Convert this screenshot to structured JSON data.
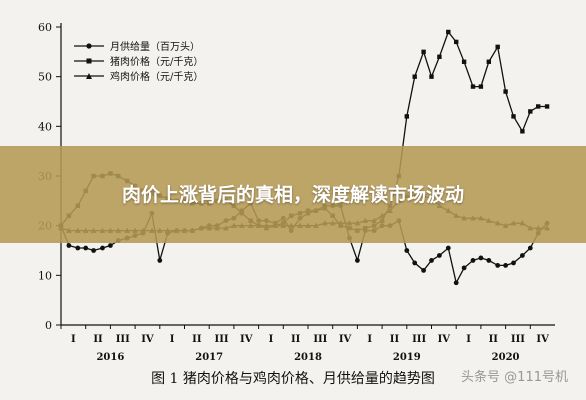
{
  "banner": {
    "title": "肉价上涨背后的真相，深度解读市场波动"
  },
  "figure": {
    "caption": "图 1  猪肉价格与鸡肉价格、月供给量的趋势图",
    "watermark": "头条号 @111号机"
  },
  "chart_data": {
    "type": "line",
    "ylim": [
      0,
      60
    ],
    "yticks": [
      "0",
      "10",
      "20",
      "30",
      "40",
      "50",
      "60"
    ],
    "quarter_labels": [
      "I",
      "II",
      "III",
      "IV",
      "I",
      "II",
      "III",
      "IV",
      "I",
      "II",
      "III",
      "IV",
      "I",
      "II",
      "III",
      "IV",
      "I",
      "II",
      "III",
      "IV"
    ],
    "years": [
      "2016",
      "2017",
      "2018",
      "2019",
      "2020"
    ],
    "x": [
      2016.0,
      2016.08,
      2016.17,
      2016.25,
      2016.33,
      2016.42,
      2016.5,
      2016.58,
      2016.67,
      2016.75,
      2016.83,
      2016.92,
      2017.0,
      2017.08,
      2017.17,
      2017.25,
      2017.33,
      2017.42,
      2017.5,
      2017.58,
      2017.67,
      2017.75,
      2017.83,
      2017.92,
      2018.0,
      2018.08,
      2018.17,
      2018.25,
      2018.33,
      2018.42,
      2018.5,
      2018.58,
      2018.67,
      2018.75,
      2018.83,
      2018.92,
      2019.0,
      2019.08,
      2019.17,
      2019.25,
      2019.33,
      2019.42,
      2019.5,
      2019.58,
      2019.67,
      2019.75,
      2019.83,
      2019.92,
      2020.0,
      2020.08,
      2020.17,
      2020.25,
      2020.33,
      2020.42,
      2020.5,
      2020.58,
      2020.67,
      2020.75,
      2020.83,
      2020.92
    ],
    "series": [
      {
        "name": "月供给量（百万头）",
        "marker": "circle",
        "values": [
          20,
          16,
          15.5,
          15.5,
          15,
          15.5,
          16,
          17,
          17.5,
          18,
          18.5,
          22.5,
          13,
          18.5,
          19,
          19,
          19,
          19.5,
          20,
          20,
          21,
          21.5,
          23,
          24.5,
          21,
          21,
          20.5,
          21.5,
          19,
          21.5,
          22.5,
          23,
          24,
          24,
          24,
          17.5,
          13,
          19,
          19,
          20,
          20,
          21,
          15,
          12.5,
          11,
          13,
          14,
          15.5,
          8.5,
          11.5,
          13,
          13.5,
          13,
          12,
          12,
          12.5,
          14,
          15.5,
          18.5,
          20.5
        ]
      },
      {
        "name": "猪肉价格（元/千克）",
        "marker": "square",
        "values": [
          20,
          22,
          24,
          27,
          30,
          30,
          30.5,
          30,
          29,
          28,
          27,
          26.5,
          26,
          25.5,
          25,
          25,
          24.5,
          24.5,
          24.5,
          25,
          25,
          24,
          22.5,
          21,
          20,
          19.5,
          20,
          20.5,
          22,
          22.5,
          23,
          23,
          23.5,
          22,
          20,
          19.5,
          19,
          19.5,
          20,
          21,
          24,
          30,
          42,
          50,
          55,
          50,
          54,
          59,
          57,
          53,
          48,
          48,
          53,
          56,
          47,
          42,
          39,
          43,
          44,
          44
        ]
      },
      {
        "name": "鸡肉价格（元/千克）",
        "marker": "triangle",
        "values": [
          19.5,
          19,
          19,
          19,
          19,
          19,
          19,
          19,
          19,
          19,
          19,
          19,
          19,
          19,
          19,
          19,
          19,
          19.5,
          19.5,
          19.5,
          19.5,
          20,
          20,
          20,
          20,
          20,
          20,
          20,
          20,
          20,
          20,
          20,
          20.5,
          20.5,
          20.5,
          20.5,
          20.5,
          21,
          21,
          22,
          23,
          25,
          26,
          26,
          26,
          25.5,
          24,
          23,
          22,
          21.5,
          21.5,
          21.5,
          21,
          20.5,
          20,
          20.5,
          20.5,
          19.5,
          19.5,
          19.5
        ]
      }
    ]
  }
}
